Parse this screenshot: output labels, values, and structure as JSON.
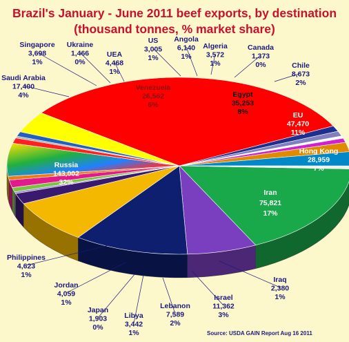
{
  "chart_data": {
    "type": "pie",
    "title_line1": "Brazil's January  - June 2011 beef exports, by destination",
    "title_line2": "(thousand tonnes, % market share)",
    "source": "Source: USDA GAIN Report  Aug 16 2011",
    "slices": [
      {
        "name": "Iran",
        "value": "75,821",
        "share": "17%",
        "color": "#19a84a"
      },
      {
        "name": "Hong Kong",
        "value": "28,959",
        "share": "7%",
        "color": "#7a3fbf"
      },
      {
        "name": "EU",
        "value": "47,470",
        "share": "11%",
        "color": "#0d1f6e"
      },
      {
        "name": "Egypt",
        "value": "35,253",
        "share": "8%",
        "color": "#f5b800"
      },
      {
        "name": "Chile",
        "value": "8,673",
        "share": "2%",
        "color": "#3a1a6e"
      },
      {
        "name": "Canada",
        "value": "1,373",
        "share": "0%",
        "color": "#9b7fd4"
      },
      {
        "name": "Algeria",
        "value": "3,572",
        "share": "1%",
        "color": "#7cc242"
      },
      {
        "name": "Angola",
        "value": "6,140",
        "share": "1%",
        "color": "#e31a8c"
      },
      {
        "name": "US",
        "value": "3,005",
        "share": "1%",
        "color": "#f07a10"
      },
      {
        "name": "Venezuela",
        "value": "26,562",
        "share": "6%",
        "color": "#e8c000"
      },
      {
        "name": "UEA",
        "value": "4,468",
        "share": "1%",
        "color": "#ff2020"
      },
      {
        "name": "Ukraine",
        "value": "1,466",
        "share": "0%",
        "color": "#b0b0b0"
      },
      {
        "name": "Singapore",
        "value": "3,698",
        "share": "1%",
        "color": "#2060c0"
      },
      {
        "name": "Saudi Arabia",
        "value": "17,400",
        "share": "4%",
        "color": "#ffff00"
      },
      {
        "name": "Russia",
        "value": "143,002",
        "share": "32%",
        "color": "#ff0000"
      },
      {
        "name": "Philippines",
        "value": "4,623",
        "share": "1%",
        "color": "#1d2f8f"
      },
      {
        "name": "Jordan",
        "value": "4,059",
        "share": "1%",
        "color": "#8080c0"
      },
      {
        "name": "Japan",
        "value": "1,903",
        "share": "0%",
        "color": "#ffffff"
      },
      {
        "name": "Libya",
        "value": "3,442",
        "share": "1%",
        "color": "#d020d0"
      },
      {
        "name": "Lebanon",
        "value": "7,589",
        "share": "2%",
        "color": "#e08a00"
      },
      {
        "name": "Israel",
        "value": "11,362",
        "share": "3%",
        "color": "#0088c8"
      },
      {
        "name": "Iraq",
        "value": "2,380",
        "share": "1%",
        "color": "#f0f0f0"
      }
    ]
  }
}
